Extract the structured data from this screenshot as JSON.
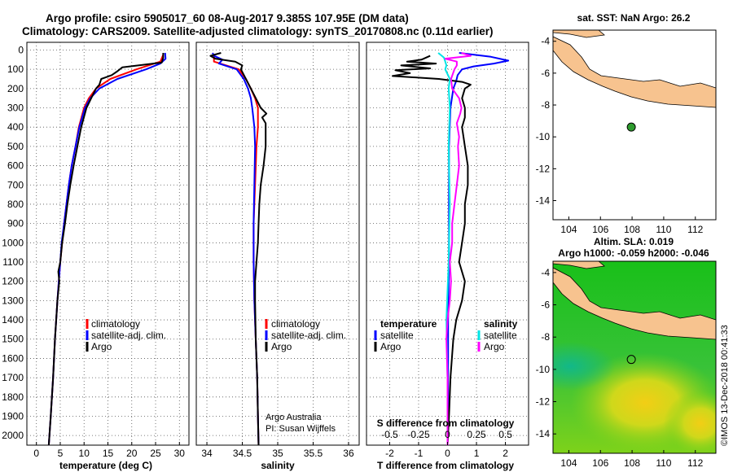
{
  "header": {
    "line1": "Argo profile: csiro 5905017_60 08-Aug-2017 9.385S 107.95E (DM data)",
    "line2": "Climatology: CARS2009. Satellite-adjusted climatology: synTS_20170808.nc (0.11d earlier)"
  },
  "colors": {
    "climatology": "#ff0000",
    "satellite": "#0000ff",
    "argo": "#000000",
    "sat_salinity": "#00e5e5",
    "argo_salinity": "#ff00ff",
    "land": "#f7c38f",
    "grid": "#555555"
  },
  "depth_axis": {
    "min": 0,
    "max": 2050,
    "ticks": [
      0,
      100,
      200,
      300,
      400,
      500,
      600,
      700,
      800,
      900,
      1000,
      1100,
      1200,
      1300,
      1400,
      1500,
      1600,
      1700,
      1800,
      1900,
      2000
    ],
    "display_top": -40
  },
  "chart_data": [
    {
      "type": "line",
      "id": "temperature",
      "xlabel": "temperature (deg C)",
      "xlim": [
        -2,
        32
      ],
      "xticks": [
        0,
        5,
        10,
        15,
        20,
        25,
        30
      ],
      "legend": [
        "climatology",
        "satellite-adj. clim.",
        "Argo"
      ],
      "series": [
        {
          "name": "climatology",
          "depth": [
            25,
            60,
            100,
            150,
            200,
            250,
            300,
            400,
            500,
            600,
            700,
            800,
            900,
            1000,
            1100,
            1200,
            1300,
            1500,
            1700,
            1900,
            2050
          ],
          "values": [
            26.6,
            26.0,
            21.0,
            15.5,
            12.5,
            11.0,
            10.0,
            8.9,
            8.2,
            7.4,
            6.8,
            6.3,
            5.8,
            5.4,
            5.0,
            4.7,
            4.4,
            3.9,
            3.5,
            3.0,
            2.6
          ]
        },
        {
          "name": "satellite-adj. clim.",
          "depth": [
            15,
            45,
            70,
            100,
            150,
            200,
            250,
            300,
            400,
            500,
            600,
            700,
            800,
            900,
            1000,
            1100,
            1200,
            1300,
            1500,
            1700,
            1900,
            2050
          ],
          "values": [
            27.0,
            27.1,
            26.0,
            23.0,
            17.0,
            13.2,
            11.3,
            10.2,
            9.0,
            8.2,
            7.4,
            6.8,
            6.3,
            5.8,
            5.3,
            5.0,
            4.7,
            4.4,
            3.9,
            3.5,
            3.0,
            2.6
          ]
        },
        {
          "name": "Argo",
          "depth": [
            15,
            40,
            65,
            90,
            110,
            130,
            150,
            180,
            200,
            250,
            300,
            400,
            500,
            600,
            700,
            800,
            900,
            1000,
            1100,
            1150,
            1200,
            1300,
            1500,
            1700,
            1900,
            2050
          ],
          "values": [
            26.6,
            26.6,
            26.3,
            18.0,
            17.0,
            15.8,
            13.6,
            13.2,
            12.5,
            11.5,
            10.5,
            9.4,
            8.6,
            7.8,
            7.1,
            6.5,
            6.0,
            5.4,
            5.0,
            4.6,
            4.8,
            4.4,
            3.9,
            3.5,
            3.0,
            2.6
          ]
        }
      ]
    },
    {
      "type": "line",
      "id": "salinity",
      "xlabel": "salinity",
      "xlim": [
        33.85,
        36.15
      ],
      "xticks": [
        34,
        34.5,
        35,
        35.5,
        36
      ],
      "legend": [
        "climatology",
        "satellite-adj. clim.",
        "Argo"
      ],
      "credit": [
        "Argo Australia",
        "PI: Susan Wijffels"
      ],
      "series": [
        {
          "name": "climatology",
          "depth": [
            25,
            60,
            100,
            150,
            200,
            250,
            300,
            400,
            500,
            700,
            900,
            1100,
            1300,
            1500,
            1700,
            1900,
            2050
          ],
          "values": [
            34.1,
            34.1,
            34.45,
            34.55,
            34.62,
            34.68,
            34.72,
            34.72,
            34.7,
            34.68,
            34.66,
            34.66,
            34.67,
            34.69,
            34.71,
            34.72,
            34.73
          ]
        },
        {
          "name": "satellite-adj. clim.",
          "depth": [
            15,
            30,
            50,
            70,
            100,
            150,
            200,
            250,
            300,
            400,
            500,
            700,
            900,
            1100,
            1300,
            1500,
            1700,
            1900,
            2050
          ],
          "values": [
            34.08,
            34.1,
            34.22,
            34.17,
            34.42,
            34.52,
            34.58,
            34.62,
            34.64,
            34.67,
            34.68,
            34.67,
            34.66,
            34.66,
            34.67,
            34.69,
            34.71,
            34.72,
            34.73
          ]
        },
        {
          "name": "Argo",
          "depth": [
            15,
            30,
            45,
            60,
            80,
            100,
            150,
            200,
            300,
            330,
            350,
            380,
            500,
            600,
            700,
            800,
            900,
            1000,
            1100,
            1200,
            1300,
            1500,
            1700,
            1900,
            2050
          ],
          "values": [
            34.2,
            34.05,
            34.12,
            34.4,
            34.5,
            34.48,
            34.55,
            34.62,
            34.76,
            34.84,
            34.78,
            34.83,
            34.83,
            34.8,
            34.76,
            34.74,
            34.73,
            34.72,
            34.7,
            34.68,
            34.68,
            34.69,
            34.71,
            34.72,
            34.73
          ]
        }
      ]
    },
    {
      "type": "line",
      "id": "difference",
      "xlabel": "T difference from climatology",
      "xlim": [
        -2.8,
        2.8
      ],
      "xticks": [
        -2,
        -1,
        0,
        1,
        2
      ],
      "s_xlim": [
        -0.7,
        0.7
      ],
      "s_xticks": [
        -0.5,
        -0.25,
        0,
        0.25,
        0.5
      ],
      "s_xtick_labels": [
        "-0.5",
        "-0.25",
        "0",
        "0.25",
        "0.5"
      ],
      "s_label": "S difference from climatology",
      "legend_headers": [
        "temperature",
        "salinity"
      ],
      "legend": [
        "satellite",
        "Argo",
        "satellite",
        "Argo"
      ],
      "series": [
        {
          "name": "temperature satellite",
          "depth": [
            15,
            35,
            55,
            70,
            85,
            100,
            130,
            160,
            200,
            300,
            500,
            800,
            1100,
            1400,
            1800,
            2050
          ],
          "values": [
            0.4,
            1.5,
            2.1,
            1.6,
            0.9,
            0.5,
            0.35,
            0.3,
            0.2,
            0.1,
            0.05,
            0.05,
            0.05,
            0.02,
            0.02,
            0.0
          ]
        },
        {
          "name": "temperature Argo",
          "depth": [
            30,
            50,
            60,
            70,
            80,
            95,
            105,
            120,
            135,
            150,
            165,
            180,
            200,
            250,
            300,
            350,
            400,
            500,
            600,
            700,
            800,
            900,
            1000,
            1100,
            1200,
            1300,
            1400,
            1500,
            1700,
            1900,
            2050
          ],
          "values": [
            -0.6,
            -0.9,
            -1.4,
            -0.4,
            -1.6,
            -0.6,
            -1.8,
            -1.3,
            -1.9,
            -0.3,
            0.5,
            0.8,
            0.6,
            0.5,
            0.6,
            0.6,
            0.5,
            0.6,
            0.7,
            0.7,
            0.6,
            0.6,
            0.5,
            0.4,
            0.6,
            0.5,
            0.3,
            0.2,
            0.1,
            0.05,
            0.0
          ]
        },
        {
          "name": "salinity satellite",
          "depth": [
            15,
            40,
            60,
            80,
            100,
            150,
            200,
            300,
            500,
            800,
            1100,
            1400,
            1700,
            1900,
            2050
          ],
          "values": [
            -0.08,
            -0.03,
            -0.02,
            -0.01,
            -0.02,
            0.02,
            0.01,
            0.02,
            0.01,
            0.02,
            0.01,
            -0.01,
            0.0,
            0.0,
            0.0
          ]
        },
        {
          "name": "salinity Argo",
          "depth": [
            15,
            30,
            45,
            60,
            80,
            100,
            150,
            200,
            250,
            300,
            330,
            380,
            450,
            500,
            600,
            700,
            800,
            900,
            1000,
            1100,
            1200,
            1300,
            1400,
            1500,
            1700,
            1900,
            2050
          ],
          "values": [
            0.12,
            0.2,
            -0.02,
            0.08,
            0.08,
            0.06,
            0.03,
            0.04,
            0.1,
            0.12,
            0.11,
            0.08,
            0.1,
            0.09,
            0.1,
            0.08,
            0.06,
            0.04,
            0.04,
            0.02,
            0.03,
            0.02,
            0.0,
            -0.01,
            0.0,
            0.0,
            0.0
          ]
        }
      ]
    }
  ],
  "maps": {
    "sst": {
      "title": "sat. SST: NaN Argo: 26.2",
      "lon_ticks": [
        104,
        106,
        108,
        110,
        112
      ],
      "lat_ticks": [
        -4,
        -6,
        -8,
        -10,
        -12,
        -14
      ],
      "lon_range": [
        103,
        113.3
      ],
      "lat_range": [
        -15.2,
        -3.3
      ],
      "profile_location": {
        "lon": 107.95,
        "lat": -9.385
      }
    },
    "sla": {
      "title": "Altim. SLA: 0.019",
      "subtitle": "Argo h1000: -0.059 h2000: -0.046",
      "lon_ticks": [
        104,
        106,
        108,
        110,
        112
      ],
      "lat_ticks": [
        -4,
        -6,
        -8,
        -10,
        -12,
        -14
      ],
      "lon_range": [
        103,
        113.3
      ],
      "lat_range": [
        -15.2,
        -3.3
      ],
      "profile_location": {
        "lon": 107.95,
        "lat": -9.385
      }
    }
  },
  "credit": "©IMOS 13-Dec-2018 00:41:33"
}
